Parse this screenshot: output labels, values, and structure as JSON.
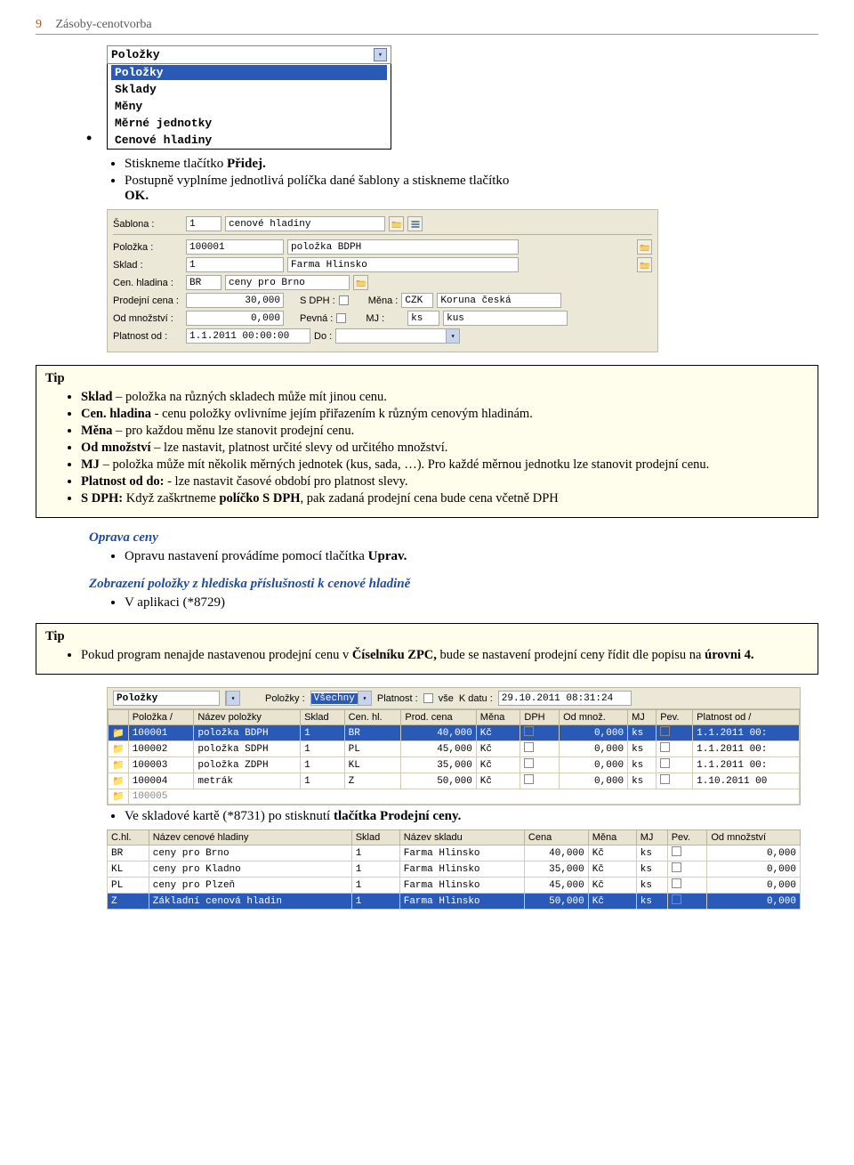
{
  "header": {
    "page_num": "9",
    "title": "Zásoby-cenotvorba"
  },
  "dropdown": {
    "header": "Položky",
    "items": [
      "Položky",
      "Sklady",
      "Měny",
      "Měrné jednotky",
      "Cenové hladiny"
    ],
    "selected_index": 0
  },
  "instr": {
    "line1_a": "Stiskneme tlačítko ",
    "line1_b": "Přidej.",
    "line2_a": "Postupně vyplníme jednotlivá políčka dané šablony a stiskneme tlačítko",
    "line2_b": "OK."
  },
  "form": {
    "sablona_lbl": "Šablona :",
    "sablona_code": "1",
    "sablona_name": "cenové hladiny",
    "polozka_lbl": "Položka :",
    "polozka_code": "100001",
    "polozka_name": "položka BDPH",
    "sklad_lbl": "Sklad :",
    "sklad_code": "1",
    "sklad_name": "Farma Hlinsko",
    "cen_lbl": "Cen. hladina :",
    "cen_code": "BR",
    "cen_name": "ceny pro Brno",
    "prod_lbl": "Prodejní cena :",
    "prod_val": "30,000",
    "sdph_lbl": "S DPH :",
    "mena_lbl": "Měna :",
    "mena_code": "CZK",
    "mena_name": "Koruna česká",
    "odmn_lbl": "Od množství :",
    "odmn_val": "0,000",
    "pevna_lbl": "Pevná :",
    "mj_lbl": "MJ :",
    "mj_code": "ks",
    "mj_name": "kus",
    "plat_lbl": "Platnost od :",
    "plat_val": "1.1.2011 00:00:00",
    "do_lbl": "Do :"
  },
  "tip1": {
    "label": "Tip",
    "l1_b": "Sklad",
    "l1": " – položka na různých skladech může mít jinou cenu.",
    "l2_b": "Cen. hladina",
    "l2": " - cenu položky ovlivníme jejím přiřazením k různým cenovým hladinám.",
    "l3_b": "Měna",
    "l3": " – pro každou měnu lze stanovit prodejní cenu.",
    "l4_b": "Od množství",
    "l4": " – lze nastavit, platnost určité slevy od určitého množství.",
    "l5_b": "MJ",
    "l5": " – položka může mít několik měrných jednotek (kus, sada, …). Pro každé měrnou jednotku lze stanovit prodejní cenu.",
    "l6_b": "Platnost od do:",
    "l6": " - lze nastavit časové období pro platnost slevy.",
    "l7_b1": "S DPH:",
    "l7_a": " Když zaškrtneme ",
    "l7_b2": "políčko S DPH",
    "l7_c": ", pak zadaná prodejní cena bude cena včetně DPH"
  },
  "sec_oprava": {
    "title": "Oprava ceny",
    "line_a": "Opravu nastavení provádíme pomocí tlačítka ",
    "line_b": "Uprav."
  },
  "sec_zobr": {
    "title": "Zobrazení položky z hlediska příslušnosti k cenové hladině",
    "line": "V aplikaci (*8729)"
  },
  "tip2": {
    "label": "Tip",
    "line_a": "Pokud program nenajde nastavenou prodejní cenu v ",
    "line_b1": "Číselníku ZPC,",
    "line_c": " bude se nastavení prodejní ceny řídit dle popisu na ",
    "line_b2": "úrovni 4."
  },
  "table1": {
    "filter": {
      "polozky_lbl": "Položky",
      "polozky_lbl2": "Položky :",
      "polozky_sel": "Všechny",
      "platnost_lbl": "Platnost :",
      "vse_lbl": "vše",
      "kdatu_lbl": "K datu :",
      "kdatu_val": "29.10.2011 08:31:24"
    },
    "cols": [
      "Položka",
      "Název položky",
      "Sklad",
      "Cen. hl.",
      "Prod. cena",
      "Měna",
      "DPH",
      "Od množ.",
      "MJ",
      "Pev.",
      "Platnost od"
    ],
    "rows": [
      {
        "p": "100001",
        "n": "položka BDPH",
        "s": "1",
        "ch": "BR",
        "pc": "40,000",
        "m": "Kč",
        "dph": false,
        "om": "0,000",
        "mj": "ks",
        "pev": false,
        "po": "1.1.2011 00:",
        "sel": true
      },
      {
        "p": "100002",
        "n": "položka SDPH",
        "s": "1",
        "ch": "PL",
        "pc": "45,000",
        "m": "Kč",
        "dph": false,
        "om": "0,000",
        "mj": "ks",
        "pev": false,
        "po": "1.1.2011 00:",
        "sel": false
      },
      {
        "p": "100003",
        "n": "položka ZDPH",
        "s": "1",
        "ch": "KL",
        "pc": "35,000",
        "m": "Kč",
        "dph": false,
        "om": "0,000",
        "mj": "ks",
        "pev": false,
        "po": "1.1.2011 00:",
        "sel": false
      },
      {
        "p": "100004",
        "n": "metrák",
        "s": "1",
        "ch": "Z",
        "pc": "50,000",
        "m": "Kč",
        "dph": false,
        "om": "0,000",
        "mj": "ks",
        "pev": false,
        "po": "1.10.2011 00",
        "sel": false
      }
    ],
    "partial_row": "100005"
  },
  "after_t1": {
    "line_a": "Ve skladové kartě (*8731) po stisknutí ",
    "line_b": "tlačítka Prodejní ceny."
  },
  "table2": {
    "cols": [
      "C.hl.",
      "Název cenové hladiny",
      "Sklad",
      "Název skladu",
      "Cena",
      "Měna",
      "MJ",
      "Pev.",
      "Od množství"
    ],
    "rows": [
      {
        "ch": "BR",
        "n": "ceny pro Brno",
        "s": "1",
        "ns": "Farma Hlinsko",
        "c": "40,000",
        "m": "Kč",
        "mj": "ks",
        "pev": false,
        "om": "0,000",
        "sel": false
      },
      {
        "ch": "KL",
        "n": "ceny pro Kladno",
        "s": "1",
        "ns": "Farma Hlinsko",
        "c": "35,000",
        "m": "Kč",
        "mj": "ks",
        "pev": false,
        "om": "0,000",
        "sel": false
      },
      {
        "ch": "PL",
        "n": "ceny pro Plzeň",
        "s": "1",
        "ns": "Farma Hlinsko",
        "c": "45,000",
        "m": "Kč",
        "mj": "ks",
        "pev": false,
        "om": "0,000",
        "sel": false
      },
      {
        "ch": "Z",
        "n": "Základní cenová hladin",
        "s": "1",
        "ns": "Farma Hlinsko",
        "c": "50,000",
        "m": "Kč",
        "mj": "ks",
        "pev": false,
        "om": "0,000",
        "sel": true
      }
    ]
  }
}
